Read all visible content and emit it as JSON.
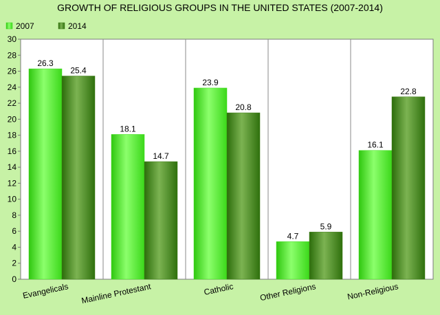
{
  "chart_data": {
    "type": "bar",
    "title": "GROWTH OF RELIGIOUS GROUPS IN THE UNITED STATES (2007-2014)",
    "categories": [
      "Evangelicals",
      "Mainline Protestant",
      "Catholic",
      "Other Religions",
      "Non-Religious"
    ],
    "series": [
      {
        "name": "2007",
        "values": [
          26.3,
          18.1,
          23.9,
          4.7,
          16.1
        ],
        "color": "#3fdc1c"
      },
      {
        "name": "2014",
        "values": [
          25.4,
          14.7,
          20.8,
          5.9,
          22.8
        ],
        "color": "#3a7a12"
      }
    ],
    "ylim": [
      0,
      30
    ],
    "yticks": [
      0,
      2,
      4,
      6,
      8,
      10,
      12,
      14,
      16,
      18,
      20,
      22,
      24,
      26,
      28,
      30
    ],
    "grid": "vertical",
    "legend": "top-left",
    "background": "#c7f2a6"
  }
}
